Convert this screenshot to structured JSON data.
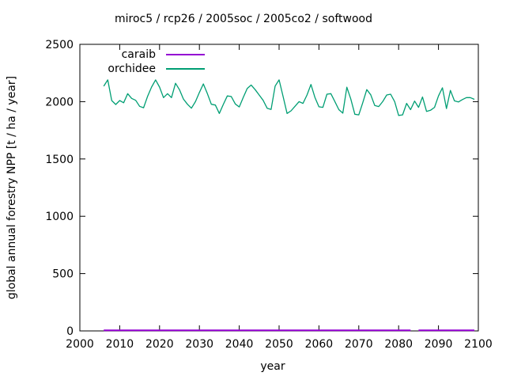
{
  "header": {
    "title": "miroc5 / rcp26 / 2005soc / 2005co2 / softwood"
  },
  "colors": {
    "background": "#ffffff",
    "axis": "#000000",
    "caraib": "#9400d3",
    "orchidee": "#009e73"
  },
  "chart_data": {
    "type": "line",
    "title": "miroc5 / rcp26 / 2005soc / 2005co2 / softwood",
    "xlabel": "year",
    "ylabel": "global annual forestry NPP [t / ha / year]",
    "xlim": [
      2000,
      2100
    ],
    "ylim": [
      0,
      2500
    ],
    "xticks": [
      2000,
      2010,
      2020,
      2030,
      2040,
      2050,
      2060,
      2070,
      2080,
      2090,
      2100
    ],
    "yticks": [
      0,
      500,
      1000,
      1500,
      2000,
      2500
    ],
    "grid": false,
    "legend_position": "top-left-inside",
    "x": [
      2006,
      2007,
      2008,
      2009,
      2010,
      2011,
      2012,
      2013,
      2014,
      2015,
      2016,
      2017,
      2018,
      2019,
      2020,
      2021,
      2022,
      2023,
      2024,
      2025,
      2026,
      2027,
      2028,
      2029,
      2030,
      2031,
      2032,
      2033,
      2034,
      2035,
      2036,
      2037,
      2038,
      2039,
      2040,
      2041,
      2042,
      2043,
      2044,
      2045,
      2046,
      2047,
      2048,
      2049,
      2050,
      2051,
      2052,
      2053,
      2054,
      2055,
      2056,
      2057,
      2058,
      2059,
      2060,
      2061,
      2062,
      2063,
      2064,
      2065,
      2066,
      2067,
      2068,
      2069,
      2070,
      2071,
      2072,
      2073,
      2074,
      2075,
      2076,
      2077,
      2078,
      2079,
      2080,
      2081,
      2082,
      2083,
      2084,
      2085,
      2086,
      2087,
      2088,
      2089,
      2090,
      2091,
      2092,
      2093,
      2094,
      2095,
      2096,
      2097,
      2098,
      2099
    ],
    "series": [
      {
        "name": "caraib",
        "color": "#9400d3",
        "values": [
          5,
          5,
          5,
          5,
          5,
          5,
          5,
          5,
          5,
          5,
          5,
          5,
          5,
          5,
          5,
          5,
          5,
          5,
          5,
          5,
          5,
          5,
          5,
          5,
          5,
          5,
          5,
          5,
          5,
          5,
          5,
          5,
          5,
          5,
          5,
          5,
          5,
          5,
          5,
          5,
          5,
          5,
          5,
          5,
          5,
          5,
          5,
          5,
          5,
          5,
          5,
          5,
          5,
          5,
          5,
          5,
          5,
          5,
          5,
          5,
          5,
          5,
          5,
          5,
          5,
          5,
          5,
          5,
          5,
          5,
          5,
          5,
          5,
          5,
          5,
          5,
          5,
          5,
          null,
          5,
          5,
          5,
          5,
          5,
          5,
          5,
          5,
          5,
          5,
          5,
          5,
          5,
          5,
          5
        ]
      },
      {
        "name": "orchidee",
        "color": "#009e73",
        "values": [
          2135,
          2190,
          2010,
          1975,
          2010,
          1990,
          2070,
          2028,
          2012,
          1959,
          1947,
          2047,
          2127,
          2190,
          2127,
          2035,
          2070,
          2035,
          2160,
          2104,
          2023,
          1977,
          1943,
          2000,
          2080,
          2155,
          2070,
          1977,
          1970,
          1897,
          1975,
          2050,
          2045,
          1980,
          1954,
          2035,
          2115,
          2145,
          2104,
          2058,
          2012,
          1943,
          1932,
          2136,
          2190,
          2047,
          1897,
          1920,
          1960,
          2000,
          1985,
          2058,
          2150,
          2035,
          1955,
          1950,
          2065,
          2070,
          2000,
          1930,
          1900,
          2126,
          2023,
          1890,
          1885,
          1990,
          2105,
          2060,
          1966,
          1957,
          2000,
          2058,
          2065,
          2000,
          1880,
          1885,
          1985,
          1930,
          2005,
          1950,
          2041,
          1915,
          1925,
          1950,
          2050,
          2121,
          1940,
          2098,
          2007,
          1997,
          2018,
          2035,
          2035,
          2020
        ]
      }
    ]
  }
}
